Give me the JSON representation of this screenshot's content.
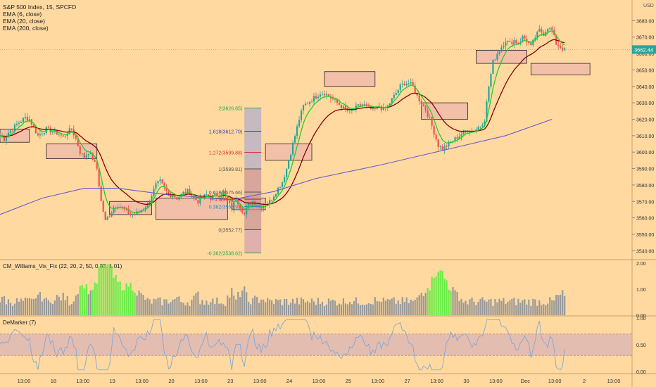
{
  "header": {
    "title": "S&P 500 Index, 15, SPCFD",
    "currency": "USD",
    "indicators": [
      "EMA (6, close)",
      "EMA (20, close)",
      "EMA (200, close)"
    ],
    "last_price": "3662.44"
  },
  "colors": {
    "background": "#ffd9a0",
    "up": "#26a69a",
    "down": "#ef5350",
    "ema_fast": "#22d022",
    "ema_mid": "#8b0000",
    "ema_slow": "#6a5acd",
    "zone_fill": "#f2c0a8",
    "vix_green": "#66ee44",
    "vix_gray": "#999999",
    "demarker_line": "#7fa8d8",
    "demarker_band": "#d9b0b8"
  },
  "chart_data": [
    {
      "type": "candlestick",
      "title": "S&P 500 Index, 15, SPCFD",
      "ylim": [
        3535,
        3690
      ],
      "y_ticks": [
        "3540.00",
        "3550.00",
        "3560.00",
        "3570.00",
        "3580.00",
        "3590.00",
        "3600.00",
        "3610.00",
        "3620.00",
        "3630.00",
        "3640.00",
        "3650.00",
        "3660.00",
        "3670.00",
        "3680.00"
      ],
      "x_ticks": [
        "13:00",
        "18",
        "13:00",
        "19",
        "13:00",
        "20",
        "13:00",
        "23",
        "13:00",
        "24",
        "13:00",
        "25",
        "13:00",
        "27",
        "13:00",
        "30",
        "13:00",
        "Dec",
        "13:00",
        "2",
        "13:00"
      ],
      "close_path": [
        [
          0,
          3610
        ],
        [
          2,
          3608
        ],
        [
          4,
          3612
        ],
        [
          6,
          3614
        ],
        [
          8,
          3617
        ],
        [
          10,
          3619
        ],
        [
          12,
          3621
        ],
        [
          14,
          3620
        ],
        [
          16,
          3615
        ],
        [
          18,
          3610
        ],
        [
          20,
          3612
        ],
        [
          22,
          3614
        ],
        [
          24,
          3613
        ],
        [
          26,
          3612
        ],
        [
          28,
          3611
        ],
        [
          30,
          3609
        ],
        [
          32,
          3612
        ],
        [
          34,
          3614
        ],
        [
          36,
          3608
        ],
        [
          38,
          3600
        ],
        [
          40,
          3597
        ],
        [
          42,
          3600
        ],
        [
          44,
          3596
        ],
        [
          46,
          3590
        ],
        [
          48,
          3570
        ],
        [
          50,
          3558
        ],
        [
          52,
          3562
        ],
        [
          54,
          3566
        ],
        [
          56,
          3568
        ],
        [
          58,
          3566
        ],
        [
          60,
          3564
        ],
        [
          62,
          3562
        ],
        [
          64,
          3562
        ],
        [
          66,
          3564
        ],
        [
          68,
          3566
        ],
        [
          70,
          3568
        ],
        [
          72,
          3574
        ],
        [
          74,
          3580
        ],
        [
          76,
          3582
        ],
        [
          78,
          3578
        ],
        [
          80,
          3574
        ],
        [
          82,
          3574
        ],
        [
          84,
          3572
        ],
        [
          86,
          3574
        ],
        [
          88,
          3576
        ],
        [
          90,
          3576
        ],
        [
          92,
          3572
        ],
        [
          94,
          3570
        ],
        [
          96,
          3572
        ],
        [
          98,
          3574
        ],
        [
          100,
          3572
        ],
        [
          102,
          3574
        ],
        [
          104,
          3574
        ],
        [
          106,
          3576
        ],
        [
          108,
          3570
        ],
        [
          110,
          3566
        ],
        [
          112,
          3572
        ],
        [
          114,
          3567
        ],
        [
          116,
          3562
        ],
        [
          118,
          3568
        ],
        [
          120,
          3570
        ],
        [
          122,
          3568
        ],
        [
          124,
          3567
        ],
        [
          126,
          3568
        ],
        [
          128,
          3570
        ],
        [
          130,
          3574
        ],
        [
          132,
          3578
        ],
        [
          134,
          3582
        ],
        [
          136,
          3590
        ],
        [
          138,
          3600
        ],
        [
          140,
          3610
        ],
        [
          142,
          3620
        ],
        [
          144,
          3628
        ],
        [
          146,
          3630
        ],
        [
          148,
          3632
        ],
        [
          150,
          3634
        ],
        [
          152,
          3636
        ],
        [
          154,
          3636
        ],
        [
          156,
          3634
        ],
        [
          158,
          3632
        ],
        [
          160,
          3630
        ],
        [
          162,
          3628
        ],
        [
          164,
          3626
        ],
        [
          166,
          3624
        ],
        [
          168,
          3626
        ],
        [
          170,
          3628
        ],
        [
          172,
          3629
        ],
        [
          174,
          3628
        ],
        [
          176,
          3626
        ],
        [
          178,
          3626
        ],
        [
          180,
          3628
        ],
        [
          182,
          3626
        ],
        [
          184,
          3628
        ],
        [
          186,
          3632
        ],
        [
          188,
          3636
        ],
        [
          190,
          3640
        ],
        [
          192,
          3642
        ],
        [
          194,
          3642
        ],
        [
          196,
          3640
        ],
        [
          198,
          3634
        ],
        [
          200,
          3630
        ],
        [
          202,
          3626
        ],
        [
          204,
          3620
        ],
        [
          206,
          3612
        ],
        [
          208,
          3604
        ],
        [
          210,
          3602
        ],
        [
          212,
          3604
        ],
        [
          214,
          3606
        ],
        [
          216,
          3608
        ],
        [
          218,
          3610
        ],
        [
          220,
          3612
        ],
        [
          222,
          3614
        ],
        [
          224,
          3613
        ],
        [
          226,
          3614
        ],
        [
          228,
          3616
        ],
        [
          230,
          3620
        ],
        [
          232,
          3640
        ],
        [
          234,
          3655
        ],
        [
          236,
          3660
        ],
        [
          238,
          3664
        ],
        [
          240,
          3668
        ],
        [
          242,
          3666
        ],
        [
          244,
          3668
        ],
        [
          246,
          3666
        ],
        [
          248,
          3670
        ],
        [
          250,
          3668
        ],
        [
          252,
          3664
        ],
        [
          254,
          3670
        ],
        [
          256,
          3674
        ],
        [
          258,
          3672
        ],
        [
          260,
          3676
        ],
        [
          262,
          3674
        ],
        [
          264,
          3666
        ],
        [
          266,
          3664
        ],
        [
          268,
          3662
        ]
      ],
      "series": [
        {
          "name": "EMA (6, close)"
        },
        {
          "name": "EMA (20, close)"
        },
        {
          "name": "EMA (200, close)",
          "values": [
            [
              0,
              3562
            ],
            [
              20,
              3572
            ],
            [
              40,
              3578
            ],
            [
              56,
              3578
            ],
            [
              80,
              3574
            ],
            [
              110,
              3571
            ],
            [
              130,
              3576
            ],
            [
              150,
              3584
            ],
            [
              180,
              3592
            ],
            [
              200,
              3598
            ],
            [
              220,
              3604
            ],
            [
              240,
              3610
            ],
            [
              262,
              3620
            ]
          ]
        }
      ],
      "zones": [
        {
          "x0": 0,
          "x1": 14,
          "y0": 3606,
          "y1": 3614
        },
        {
          "x0": 22,
          "x1": 46,
          "y0": 3596,
          "y1": 3605
        },
        {
          "x0": 52,
          "x1": 72,
          "y0": 3562,
          "y1": 3570
        },
        {
          "x0": 74,
          "x1": 108,
          "y0": 3559,
          "y1": 3572
        },
        {
          "x0": 110,
          "x1": 126,
          "y0": 3565,
          "y1": 3572
        },
        {
          "x0": 126,
          "x1": 148,
          "y0": 3595,
          "y1": 3605
        },
        {
          "x0": 154,
          "x1": 178,
          "y0": 3640,
          "y1": 3649
        },
        {
          "x0": 200,
          "x1": 222,
          "y0": 3620,
          "y1": 3630
        },
        {
          "x0": 226,
          "x1": 250,
          "y0": 3654,
          "y1": 3662
        },
        {
          "x0": 252,
          "x1": 280,
          "y0": 3647,
          "y1": 3654
        }
      ],
      "fib_levels": [
        {
          "label": "2(3626.85)",
          "value": 3626.85,
          "color": "#22aa44"
        },
        {
          "label": "1.618(3612.70)",
          "value": 3612.7,
          "color": "#3344aa"
        },
        {
          "label": "1.272(3599.88)",
          "value": 3599.88,
          "color": "#dd3333"
        },
        {
          "label": "1(3589.81)",
          "value": 3589.81,
          "color": "#555555"
        },
        {
          "label": "0.618(3575.66)",
          "value": 3575.66,
          "color": "#555555"
        },
        {
          "label": "0.5(3571.29)",
          "value": 3571.29,
          "color": "#dd3333"
        },
        {
          "label": "0.382(3566.92)",
          "value": 3566.92,
          "color": "#2288cc"
        },
        {
          "label": "0(3552.77)",
          "value": 3552.77,
          "color": "#555555"
        },
        {
          "label": "-0.382(3538.62)",
          "value": 3538.62,
          "color": "#22aa44"
        }
      ]
    },
    {
      "type": "bar",
      "title": "CM_Williams_Vix_Fix (22, 20, 2, 50, 0.85, 1.01)",
      "ylim": [
        0,
        2.05
      ],
      "y_ticks": [
        "0.00",
        "1.00",
        "2.00"
      ]
    },
    {
      "type": "line",
      "title": "DeMarker (7)",
      "ylim": [
        0,
        1
      ],
      "y_ticks": [
        "0.00",
        "0.50",
        "1.00"
      ],
      "band": [
        0.3,
        0.7
      ]
    }
  ]
}
